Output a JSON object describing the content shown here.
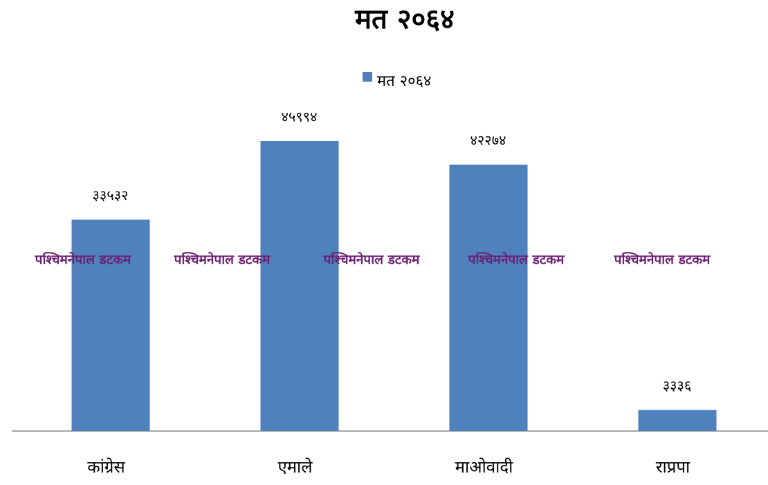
{
  "chart_data": {
    "type": "bar",
    "title": "मत २०६४",
    "categories": [
      "कांग्रेस",
      "एमाले",
      "माओवादी",
      "राप्रपा"
    ],
    "series": [
      {
        "name": "मत २०६४",
        "color": "#4f81bd",
        "values": [
          33532,
          45994,
          42274,
          3336
        ],
        "value_labels": [
          "३३५३२",
          "४५९९४",
          "४२२७४",
          "३३३६"
        ]
      }
    ],
    "annotations": [
      "पश्चिमनेपाल डटकम",
      "पश्चिमनेपाल डटकम",
      "पश्चिमनेपाल डटकम",
      "पश्चिमनेपाल डटकम",
      "पश्चिमनेपाल डटकम"
    ],
    "legend": "top"
  }
}
